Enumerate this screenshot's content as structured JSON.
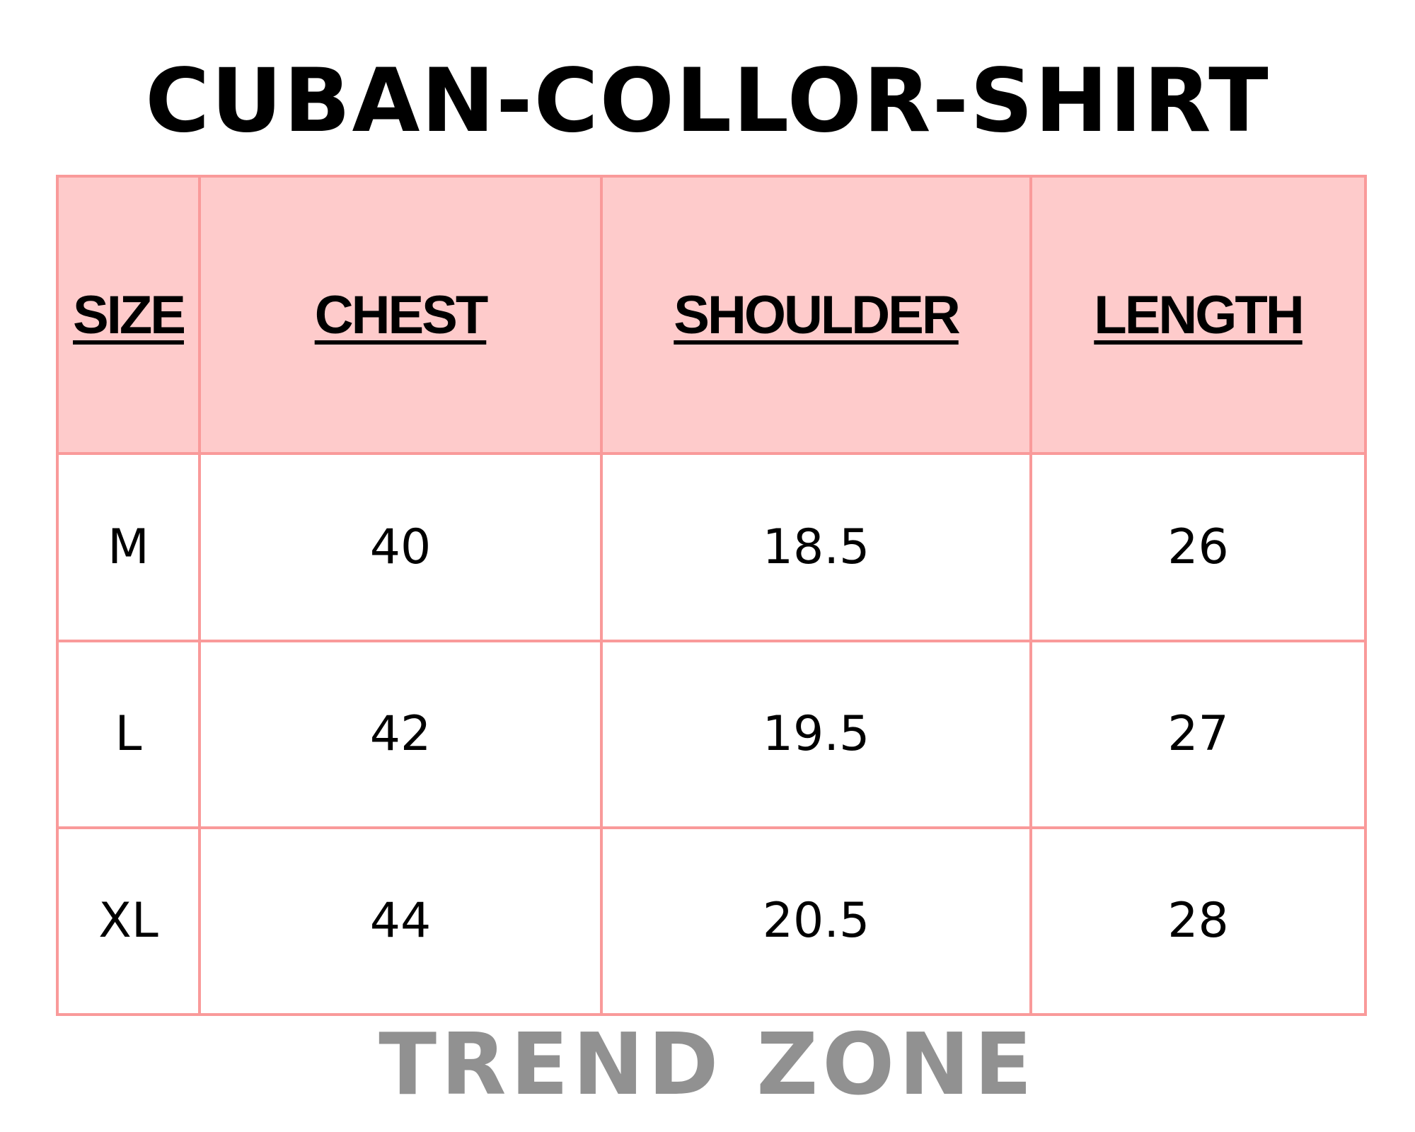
{
  "title": "CUBAN-COLLOR-SHIRT",
  "colors": {
    "header_bg": "#fecbcb",
    "border": "#f99a9a",
    "footer_text": "#919191"
  },
  "table": {
    "headers": [
      "SIZE",
      "CHEST",
      "SHOULDER",
      "LENGTH"
    ],
    "rows": [
      [
        "M",
        "40",
        "18.5",
        "26"
      ],
      [
        "L",
        "42",
        "19.5",
        "27"
      ],
      [
        "XL",
        "44",
        "20.5",
        "28"
      ]
    ]
  },
  "footer": "TREND ZONE"
}
